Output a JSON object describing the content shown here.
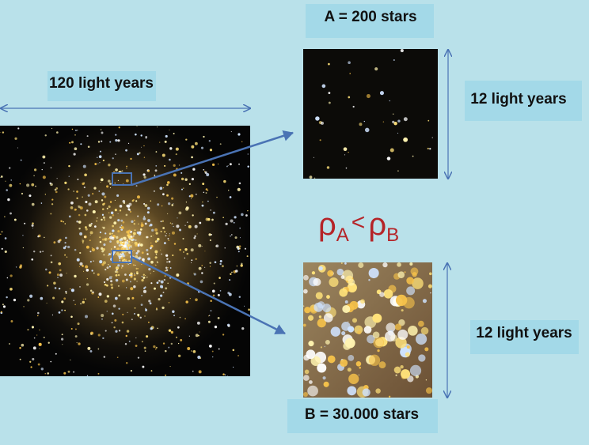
{
  "labels": {
    "a_count": "A = 200 stars",
    "width": "120 light years",
    "a_size": "12 light years",
    "b_size": "12 light years",
    "b_count": "B = 30.000 stars"
  },
  "formula": {
    "left": "ρ",
    "left_sub": "A",
    "operator": "<",
    "right": "ρ",
    "right_sub": "B"
  }
}
